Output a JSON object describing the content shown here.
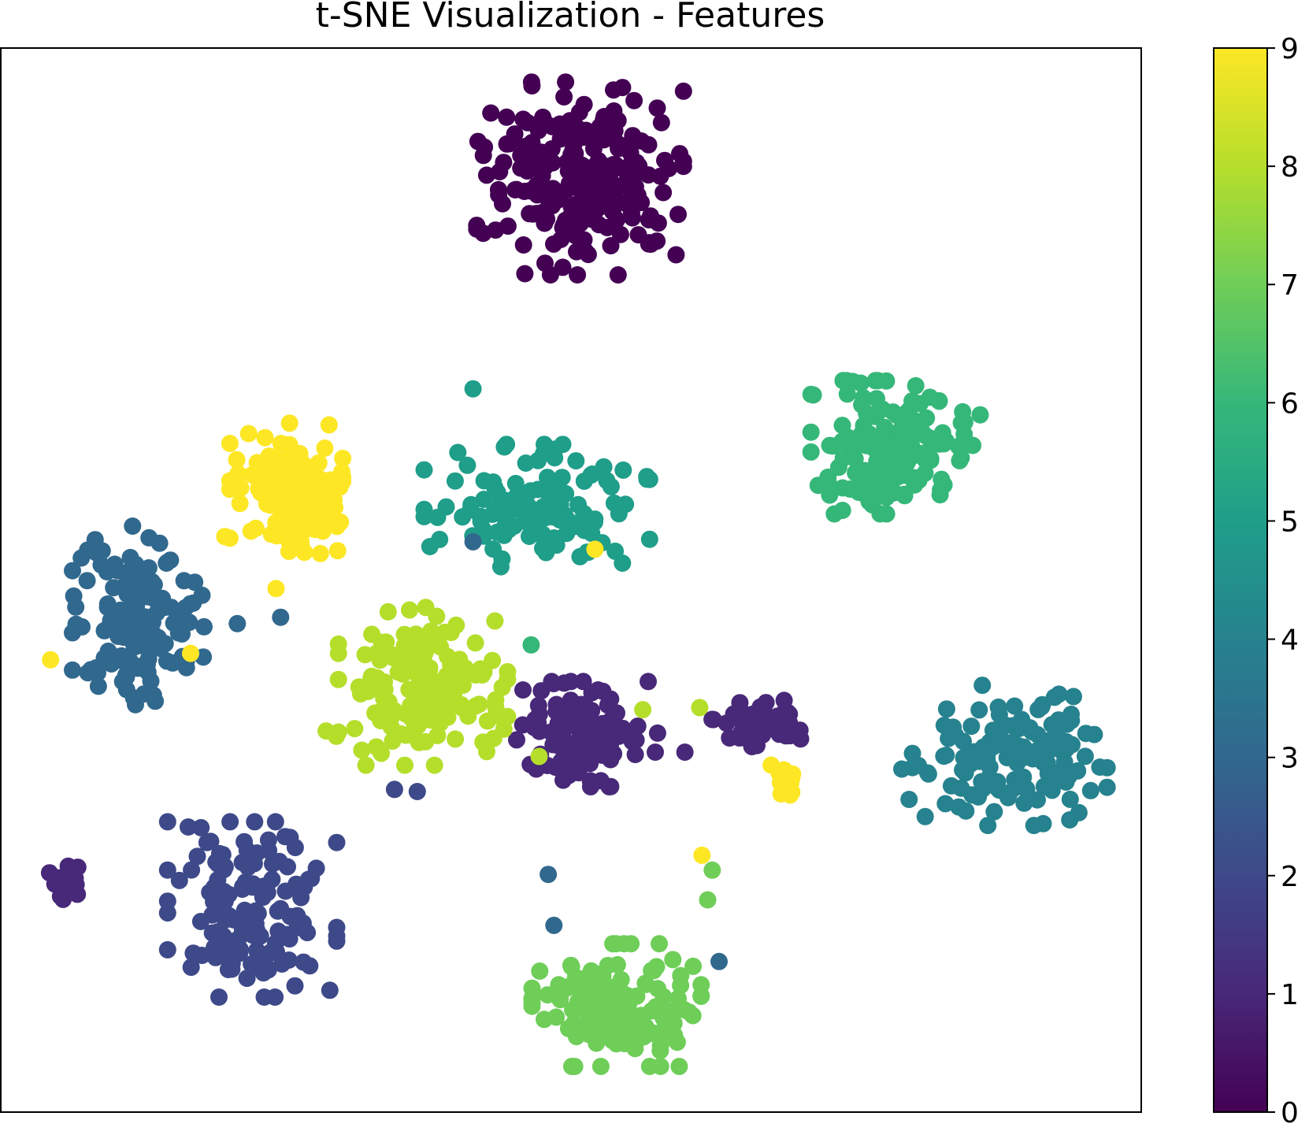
{
  "chart_data": {
    "type": "scatter",
    "title": "t-SNE Visualization - Features",
    "xlabel": "",
    "ylabel": "",
    "x_ticks": [],
    "y_ticks": [],
    "grid": false,
    "legend": "none",
    "colormap": "viridis",
    "colorbar": {
      "ticks": [
        "0",
        "1",
        "2",
        "3",
        "4",
        "5",
        "6",
        "7",
        "8",
        "9"
      ],
      "range": [
        0,
        9
      ]
    },
    "class_colors": [
      "#440154",
      "#482878",
      "#3e4989",
      "#31688e",
      "#26828e",
      "#1f9e89",
      "#35b779",
      "#6ece58",
      "#b5de2b",
      "#fde725"
    ],
    "clusters": [
      {
        "label": 0,
        "center": [
          0.508,
          0.122
        ],
        "spread": [
          0.055,
          0.055
        ],
        "count": 240
      },
      {
        "label": 1,
        "center": [
          0.51,
          0.645
        ],
        "spread": [
          0.035,
          0.03
        ],
        "count": 110
      },
      {
        "label": 1,
        "center": [
          0.668,
          0.632
        ],
        "spread": [
          0.028,
          0.015
        ],
        "count": 60
      },
      {
        "label": 1,
        "center": [
          0.057,
          0.783
        ],
        "spread": [
          0.009,
          0.011
        ],
        "count": 18
      },
      {
        "label": 2,
        "center": [
          0.22,
          0.81
        ],
        "spread": [
          0.045,
          0.05
        ],
        "count": 150
      },
      {
        "label": 3,
        "center": [
          0.12,
          0.54
        ],
        "spread": [
          0.035,
          0.055
        ],
        "count": 150
      },
      {
        "label": 4,
        "center": [
          0.88,
          0.665
        ],
        "spread": [
          0.055,
          0.04
        ],
        "count": 140
      },
      {
        "label": 5,
        "center": [
          0.47,
          0.43
        ],
        "spread": [
          0.06,
          0.035
        ],
        "count": 130
      },
      {
        "label": 6,
        "center": [
          0.785,
          0.375
        ],
        "spread": [
          0.045,
          0.038
        ],
        "count": 150
      },
      {
        "label": 7,
        "center": [
          0.54,
          0.9
        ],
        "spread": [
          0.045,
          0.035
        ],
        "count": 150
      },
      {
        "label": 8,
        "center": [
          0.37,
          0.6
        ],
        "spread": [
          0.045,
          0.045
        ],
        "count": 160
      },
      {
        "label": 9,
        "center": [
          0.25,
          0.415
        ],
        "spread": [
          0.03,
          0.038
        ],
        "count": 130
      },
      {
        "label": 9,
        "center": [
          0.688,
          0.687
        ],
        "spread": [
          0.01,
          0.012
        ],
        "count": 12
      }
    ],
    "outliers": [
      {
        "label": 5,
        "x": 0.414,
        "y": 0.32
      },
      {
        "label": 3,
        "x": 0.414,
        "y": 0.464
      },
      {
        "label": 9,
        "x": 0.521,
        "y": 0.471
      },
      {
        "label": 3,
        "x": 0.207,
        "y": 0.541
      },
      {
        "label": 9,
        "x": 0.166,
        "y": 0.569
      },
      {
        "label": 9,
        "x": 0.241,
        "y": 0.508
      },
      {
        "label": 9,
        "x": 0.196,
        "y": 0.459
      },
      {
        "label": 9,
        "x": 0.219,
        "y": 0.454
      },
      {
        "label": 3,
        "x": 0.245,
        "y": 0.535
      },
      {
        "label": 8,
        "x": 0.285,
        "y": 0.642
      },
      {
        "label": 8,
        "x": 0.294,
        "y": 0.647
      },
      {
        "label": 2,
        "x": 0.345,
        "y": 0.697
      },
      {
        "label": 2,
        "x": 0.365,
        "y": 0.699
      },
      {
        "label": 6,
        "x": 0.465,
        "y": 0.561
      },
      {
        "label": 8,
        "x": 0.472,
        "y": 0.666
      },
      {
        "label": 3,
        "x": 0.48,
        "y": 0.777
      },
      {
        "label": 3,
        "x": 0.485,
        "y": 0.825
      },
      {
        "label": 9,
        "x": 0.615,
        "y": 0.759
      },
      {
        "label": 7,
        "x": 0.624,
        "y": 0.773
      },
      {
        "label": 7,
        "x": 0.62,
        "y": 0.801
      },
      {
        "label": 3,
        "x": 0.63,
        "y": 0.859
      },
      {
        "label": 8,
        "x": 0.563,
        "y": 0.622
      },
      {
        "label": 8,
        "x": 0.613,
        "y": 0.62
      },
      {
        "label": 1,
        "x": 0.576,
        "y": 0.644
      },
      {
        "label": 1,
        "x": 0.574,
        "y": 0.662
      },
      {
        "label": 1,
        "x": 0.6,
        "y": 0.662
      },
      {
        "label": 4,
        "x": 0.866,
        "y": 0.731
      },
      {
        "label": 9,
        "x": 0.043,
        "y": 0.575
      }
    ]
  }
}
